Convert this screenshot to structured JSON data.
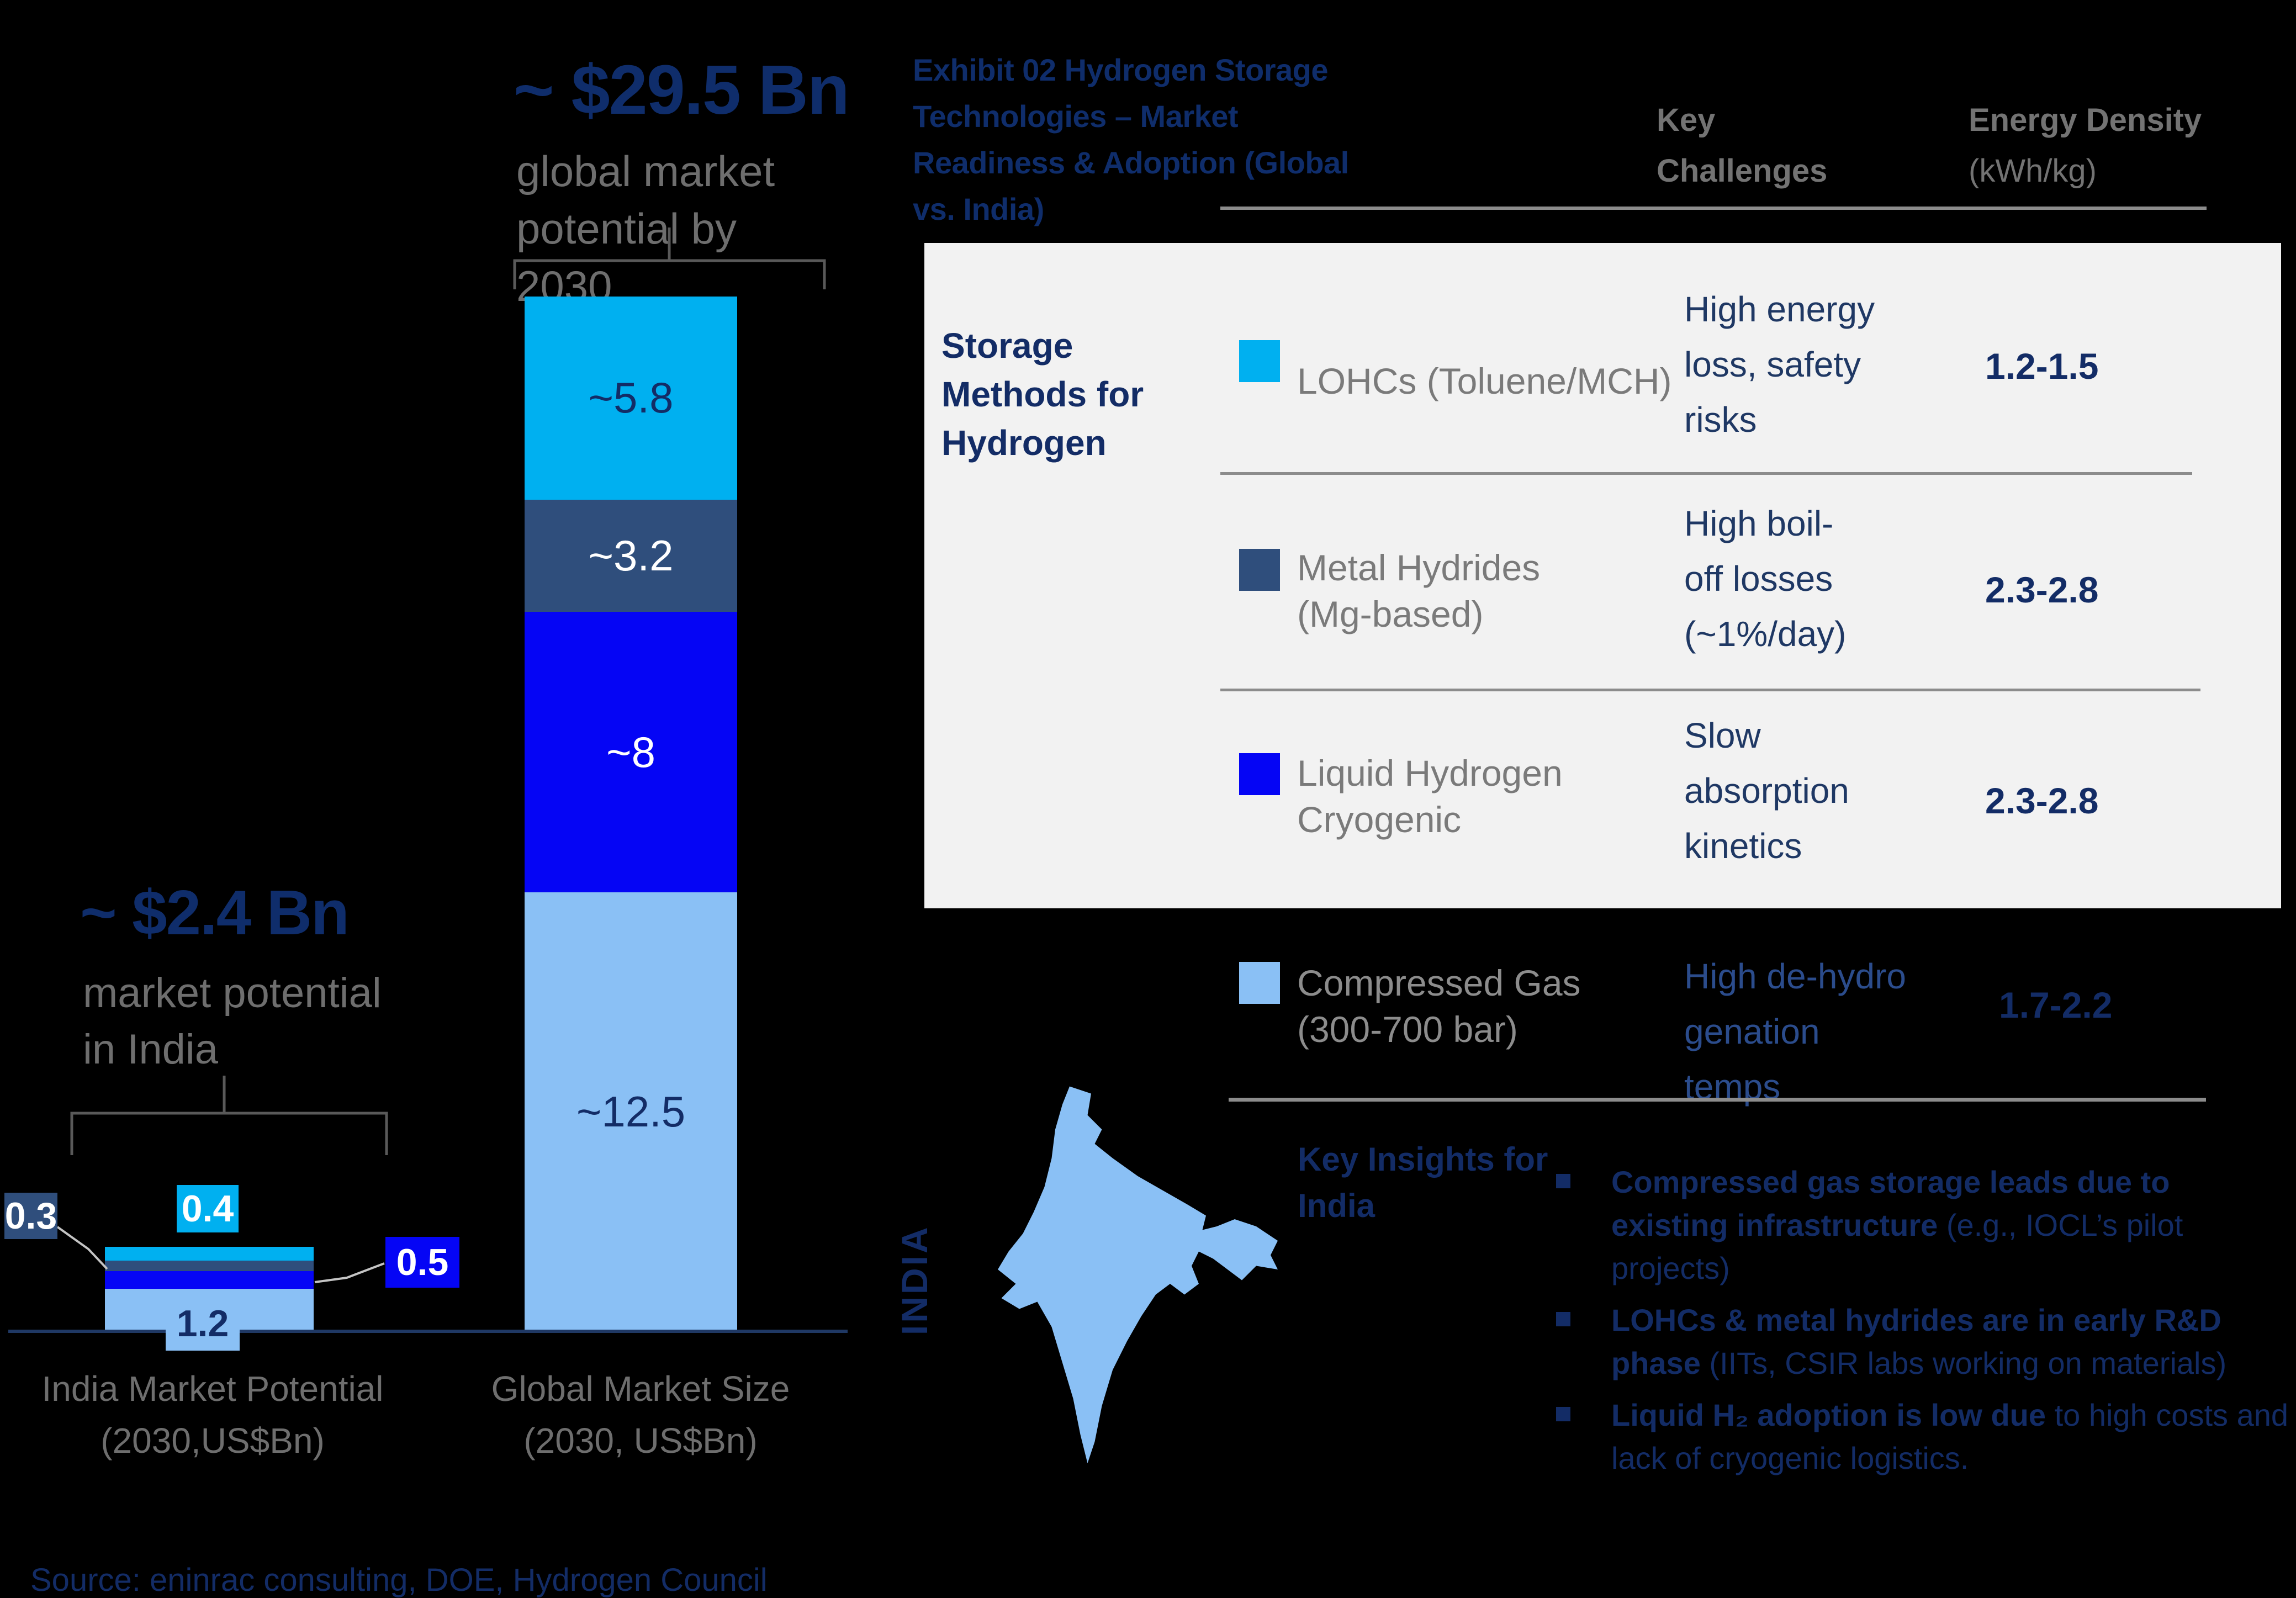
{
  "exhibit_title": "Exhibit 02 Hydrogen Storage Technologies – Market Readiness & Adoption (Global vs. India)",
  "source": "Source: eninrac consulting, DOE, Hydrogen Council",
  "map_label": "INDIA",
  "colors": {
    "background": "#000000",
    "cyan": "#00B0F0",
    "slate": "#2F4E7C",
    "blue": "#0505F5",
    "light_blue": "#8AC0F5",
    "navy": "#132C66",
    "navy_deep": "#0F2D6B",
    "challenge_navy": "#1F3864",
    "dehydro_blue": "#2B4C8C",
    "gray_text": "#6E6E6E",
    "gray_head": "#737373",
    "gray_method": "#7A7A7A",
    "panel": "#F2F2F2",
    "divider": "#8C8C8C",
    "axis": "#1F3864",
    "leader": "#C4C4C4",
    "bracket": "#595959"
  },
  "chart_data": {
    "type": "bar",
    "subtype": "stacked-column",
    "categories": [
      "India Market Potential (2030,US$Bn)",
      "Global Market Size (2030, US$Bn)"
    ],
    "series": [
      {
        "name": "LOHCs (Toluene/MCH)",
        "color": "#00B0F0",
        "values": [
          0.4,
          5.8
        ],
        "labels": [
          "0.4",
          "~5.8"
        ],
        "label_text_color": "#132C66"
      },
      {
        "name": "Metal Hydrides (Mg-based)",
        "color": "#2F4E7C",
        "values": [
          0.3,
          3.2
        ],
        "labels": [
          "0.3",
          "~3.2"
        ],
        "label_text_color": "#FFFFFF"
      },
      {
        "name": "Liquid Hydrogen Cryogenic",
        "color": "#0505F5",
        "values": [
          0.5,
          8
        ],
        "labels": [
          "0.5",
          "~8"
        ],
        "label_text_color": "#FFFFFF"
      },
      {
        "name": "Compressed Gas (300-700 bar)",
        "color": "#8AC0F5",
        "values": [
          1.2,
          12.5
        ],
        "labels": [
          "1.2",
          "~12.5"
        ],
        "label_text_color": "#132C66"
      }
    ],
    "totals": {
      "india": 2.4,
      "global": 29.5
    },
    "annotations": {
      "global_headline": "~ $29.5 Bn",
      "global_subline": "global market potential by 2030",
      "india_headline": "~ $2.4 Bn",
      "india_subline": "market potential in India"
    },
    "axis_labels": {
      "india": [
        "India Market Potential",
        "(2030,US$Bn)"
      ],
      "global": [
        "Global Market Size",
        "(2030, US$Bn)"
      ]
    },
    "grid": false,
    "legend_position": "table-right"
  },
  "table": {
    "group_label": "Storage Methods for Hydrogen",
    "header": {
      "challenges": "Key Challenges",
      "energy_line1": "Energy Density",
      "energy_line2": "(kWh/kg)"
    },
    "rows": [
      {
        "method": "LOHCs (Toluene/MCH)",
        "challenge": "High energy loss, safety risks",
        "energy": "1.2-1.5",
        "swatch": "#00B0F0"
      },
      {
        "method": "Metal Hydrides (Mg-based)",
        "challenge": "High boil-off losses (~1%/day)",
        "energy": "2.3-2.8",
        "swatch": "#2F4E7C"
      },
      {
        "method": "Liquid Hydrogen Cryogenic",
        "challenge": "Slow absorption kinetics",
        "energy": "2.3-2.8",
        "swatch": "#0505F5"
      },
      {
        "method": "Compressed Gas (300-700 bar)",
        "challenge": "High de-hydro genation temps",
        "energy": "1.7-2.2",
        "swatch": "#8AC0F5"
      }
    ]
  },
  "insights": {
    "heading": "Key Insights for India",
    "bullets": [
      {
        "bold": "Compressed gas storage leads due to existing infrastructure",
        "rest": " (e.g., IOCL’s pilot projects)"
      },
      {
        "bold": "LOHCs & metal hydrides are in early R&D phase",
        "rest": " (IITs, CSIR labs working on materials)"
      },
      {
        "bold": "Liquid H₂ adoption is low due",
        "rest": " to high costs and lack of cryogenic logistics."
      }
    ]
  }
}
